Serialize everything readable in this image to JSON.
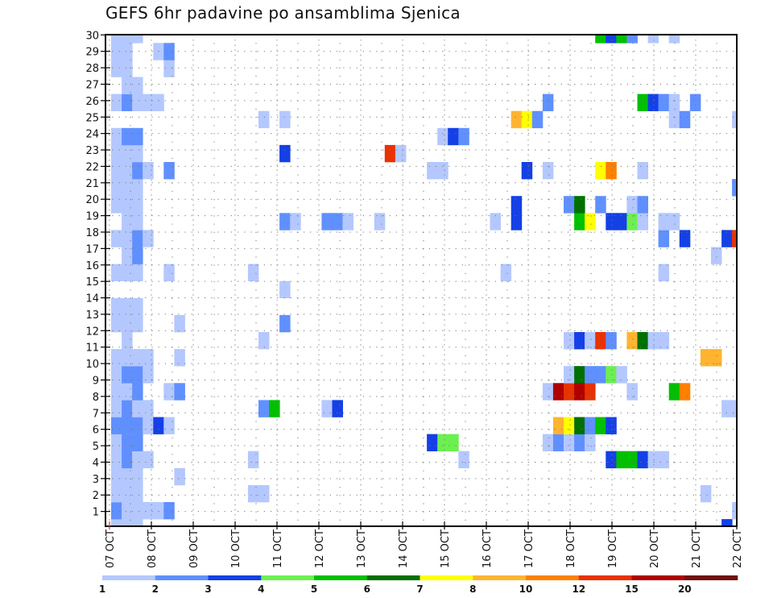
{
  "chart_data": {
    "type": "heatmap",
    "title": "GEFS 6hr padavine po ansamblima Sjenica",
    "xlabel": "",
    "ylabel": "",
    "x_start": "07 OCT 00Z",
    "x_step_hours": 6,
    "x_steps": 60,
    "x_ticks": [
      "07 OCT",
      "08 OCT",
      "09 OCT",
      "10 OCT",
      "11 OCT",
      "12 OCT",
      "13 OCT",
      "14 OCT",
      "15 OCT",
      "16 OCT",
      "17 OCT",
      "18 OCT",
      "19 OCT",
      "20 OCT",
      "21 OCT",
      "22 OCT"
    ],
    "y_ticks": [
      1,
      2,
      3,
      4,
      5,
      6,
      7,
      8,
      9,
      10,
      11,
      12,
      13,
      14,
      15,
      16,
      17,
      18,
      19,
      20,
      21,
      22,
      23,
      24,
      25,
      26,
      27,
      28,
      29,
      30
    ],
    "ylim": [
      1,
      30
    ],
    "grid": true,
    "colorbar": {
      "placement": "bottom",
      "levels": [
        "1",
        "2",
        "3",
        "4",
        "5",
        "6",
        "7",
        "8",
        "10",
        "12",
        "15",
        "20"
      ],
      "colors": [
        "#b4c8ff",
        "#6090ff",
        "#1440e6",
        "#6cf050",
        "#00c000",
        "#007000",
        "#ffff00",
        "#ffb430",
        "#ff8000",
        "#e83200",
        "#b00000",
        "#701010"
      ]
    },
    "class_values": {
      "l": 1.5,
      "m": 2.5,
      "d": 3.5,
      "lg": 4.5,
      "g": 5.5,
      "dg": 6.5,
      "y": 7.5,
      "lo": 9,
      "o": 11,
      "r": 13,
      "dr": 17
    },
    "members": {
      "30": [
        [
          0,
          "l"
        ],
        [
          1,
          "l"
        ],
        [
          2,
          "l"
        ],
        [
          46,
          "g"
        ],
        [
          47,
          "d"
        ],
        [
          48,
          "g"
        ],
        [
          49,
          "m"
        ],
        [
          51,
          "l"
        ],
        [
          53,
          "l"
        ]
      ],
      "29": [
        [
          0,
          "l"
        ],
        [
          1,
          "l"
        ],
        [
          4,
          "l"
        ],
        [
          5,
          "m"
        ]
      ],
      "28": [
        [
          0,
          "l"
        ],
        [
          1,
          "l"
        ],
        [
          5,
          "l"
        ]
      ],
      "27": [
        [
          1,
          "l"
        ],
        [
          2,
          "l"
        ]
      ],
      "26": [
        [
          0,
          "l"
        ],
        [
          1,
          "m"
        ],
        [
          2,
          "l"
        ],
        [
          3,
          "l"
        ],
        [
          4,
          "l"
        ],
        [
          41,
          "m"
        ],
        [
          50,
          "g"
        ],
        [
          51,
          "d"
        ],
        [
          52,
          "m"
        ],
        [
          53,
          "l"
        ],
        [
          55,
          "m"
        ]
      ],
      "25": [
        [
          14,
          "l"
        ],
        [
          16,
          "l"
        ],
        [
          38,
          "lo"
        ],
        [
          39,
          "y"
        ],
        [
          40,
          "m"
        ],
        [
          53,
          "l"
        ],
        [
          54,
          "m"
        ],
        [
          59,
          "l"
        ]
      ],
      "24": [
        [
          0,
          "l"
        ],
        [
          1,
          "m"
        ],
        [
          2,
          "m"
        ],
        [
          31,
          "l"
        ],
        [
          32,
          "d"
        ],
        [
          33,
          "m"
        ]
      ],
      "23": [
        [
          0,
          "l"
        ],
        [
          1,
          "l"
        ],
        [
          2,
          "l"
        ],
        [
          16,
          "d"
        ],
        [
          26,
          "r"
        ],
        [
          27,
          "l"
        ]
      ],
      "22": [
        [
          0,
          "l"
        ],
        [
          1,
          "l"
        ],
        [
          2,
          "m"
        ],
        [
          3,
          "l"
        ],
        [
          5,
          "m"
        ],
        [
          30,
          "l"
        ],
        [
          31,
          "l"
        ],
        [
          39,
          "d"
        ],
        [
          41,
          "l"
        ],
        [
          46,
          "y"
        ],
        [
          47,
          "o"
        ],
        [
          50,
          "l"
        ]
      ],
      "21": [
        [
          0,
          "l"
        ],
        [
          1,
          "l"
        ],
        [
          2,
          "l"
        ],
        [
          59,
          "m"
        ]
      ],
      "20": [
        [
          0,
          "l"
        ],
        [
          1,
          "l"
        ],
        [
          2,
          "l"
        ],
        [
          38,
          "d"
        ],
        [
          43,
          "m"
        ],
        [
          44,
          "dg"
        ],
        [
          46,
          "m"
        ],
        [
          49,
          "l"
        ],
        [
          50,
          "m"
        ]
      ],
      "19": [
        [
          1,
          "l"
        ],
        [
          2,
          "l"
        ],
        [
          16,
          "m"
        ],
        [
          17,
          "l"
        ],
        [
          20,
          "m"
        ],
        [
          21,
          "m"
        ],
        [
          22,
          "l"
        ],
        [
          25,
          "l"
        ],
        [
          36,
          "l"
        ],
        [
          38,
          "d"
        ],
        [
          44,
          "g"
        ],
        [
          45,
          "y"
        ],
        [
          47,
          "d"
        ],
        [
          48,
          "d"
        ],
        [
          49,
          "lg"
        ],
        [
          50,
          "l"
        ],
        [
          52,
          "l"
        ],
        [
          53,
          "l"
        ]
      ],
      "18": [
        [
          0,
          "l"
        ],
        [
          1,
          "l"
        ],
        [
          2,
          "m"
        ],
        [
          3,
          "l"
        ],
        [
          52,
          "m"
        ],
        [
          54,
          "d"
        ],
        [
          58,
          "d"
        ],
        [
          59,
          "r"
        ]
      ],
      "17": [
        [
          1,
          "l"
        ],
        [
          2,
          "m"
        ],
        [
          57,
          "l"
        ]
      ],
      "16": [
        [
          0,
          "l"
        ],
        [
          1,
          "l"
        ],
        [
          2,
          "l"
        ],
        [
          5,
          "l"
        ],
        [
          13,
          "l"
        ],
        [
          37,
          "l"
        ],
        [
          52,
          "l"
        ]
      ],
      "15": [
        [
          16,
          "l"
        ]
      ],
      "14": [
        [
          0,
          "l"
        ],
        [
          1,
          "l"
        ],
        [
          2,
          "l"
        ]
      ],
      "13": [
        [
          0,
          "l"
        ],
        [
          1,
          "l"
        ],
        [
          2,
          "l"
        ],
        [
          6,
          "l"
        ],
        [
          16,
          "m"
        ]
      ],
      "12": [
        [
          1,
          "l"
        ],
        [
          14,
          "l"
        ],
        [
          43,
          "l"
        ],
        [
          44,
          "d"
        ],
        [
          45,
          "l"
        ],
        [
          46,
          "r"
        ],
        [
          47,
          "m"
        ],
        [
          49,
          "lo"
        ],
        [
          50,
          "dg"
        ],
        [
          51,
          "l"
        ],
        [
          52,
          "l"
        ]
      ],
      "11": [
        [
          0,
          "l"
        ],
        [
          1,
          "l"
        ],
        [
          2,
          "l"
        ],
        [
          3,
          "l"
        ],
        [
          6,
          "l"
        ],
        [
          56,
          "lo"
        ],
        [
          57,
          "lo"
        ]
      ],
      "10": [
        [
          0,
          "l"
        ],
        [
          1,
          "m"
        ],
        [
          2,
          "m"
        ],
        [
          3,
          "l"
        ],
        [
          43,
          "l"
        ],
        [
          44,
          "dg"
        ],
        [
          45,
          "m"
        ],
        [
          46,
          "m"
        ],
        [
          47,
          "lg"
        ],
        [
          48,
          "l"
        ]
      ],
      "9": [
        [
          0,
          "l"
        ],
        [
          1,
          "l"
        ],
        [
          2,
          "m"
        ],
        [
          5,
          "l"
        ],
        [
          6,
          "m"
        ],
        [
          41,
          "l"
        ],
        [
          42,
          "dr"
        ],
        [
          43,
          "r"
        ],
        [
          44,
          "dr"
        ],
        [
          45,
          "r"
        ],
        [
          49,
          "l"
        ],
        [
          53,
          "g"
        ],
        [
          54,
          "o"
        ]
      ],
      "8": [
        [
          0,
          "l"
        ],
        [
          1,
          "m"
        ],
        [
          2,
          "l"
        ],
        [
          3,
          "l"
        ],
        [
          14,
          "m"
        ],
        [
          15,
          "g"
        ],
        [
          20,
          "l"
        ],
        [
          21,
          "d"
        ],
        [
          58,
          "l"
        ],
        [
          59,
          "l"
        ]
      ],
      "7": [
        [
          0,
          "m"
        ],
        [
          1,
          "m"
        ],
        [
          2,
          "m"
        ],
        [
          3,
          "l"
        ],
        [
          4,
          "d"
        ],
        [
          5,
          "l"
        ],
        [
          42,
          "lo"
        ],
        [
          43,
          "y"
        ],
        [
          44,
          "dg"
        ],
        [
          45,
          "m"
        ],
        [
          46,
          "g"
        ],
        [
          47,
          "d"
        ]
      ],
      "6": [
        [
          0,
          "l"
        ],
        [
          1,
          "m"
        ],
        [
          2,
          "m"
        ],
        [
          30,
          "d"
        ],
        [
          31,
          "lg"
        ],
        [
          32,
          "lg"
        ],
        [
          41,
          "l"
        ],
        [
          42,
          "m"
        ],
        [
          43,
          "l"
        ],
        [
          44,
          "m"
        ],
        [
          45,
          "l"
        ]
      ],
      "5": [
        [
          0,
          "l"
        ],
        [
          1,
          "m"
        ],
        [
          2,
          "l"
        ],
        [
          3,
          "l"
        ],
        [
          13,
          "l"
        ],
        [
          33,
          "l"
        ],
        [
          47,
          "d"
        ],
        [
          48,
          "g"
        ],
        [
          49,
          "g"
        ],
        [
          50,
          "d"
        ],
        [
          51,
          "l"
        ],
        [
          52,
          "l"
        ]
      ],
      "4": [
        [
          0,
          "l"
        ],
        [
          1,
          "l"
        ],
        [
          2,
          "l"
        ],
        [
          6,
          "l"
        ]
      ],
      "3": [
        [
          0,
          "l"
        ],
        [
          1,
          "l"
        ],
        [
          2,
          "l"
        ],
        [
          13,
          "l"
        ],
        [
          14,
          "l"
        ],
        [
          56,
          "l"
        ]
      ],
      "2": [
        [
          0,
          "m"
        ],
        [
          1,
          "l"
        ],
        [
          2,
          "l"
        ],
        [
          3,
          "l"
        ],
        [
          4,
          "l"
        ],
        [
          5,
          "m"
        ],
        [
          59,
          "l"
        ]
      ],
      "1": [
        [
          0,
          "l"
        ],
        [
          1,
          "l"
        ],
        [
          2,
          "l"
        ],
        [
          58,
          "d"
        ]
      ]
    }
  }
}
